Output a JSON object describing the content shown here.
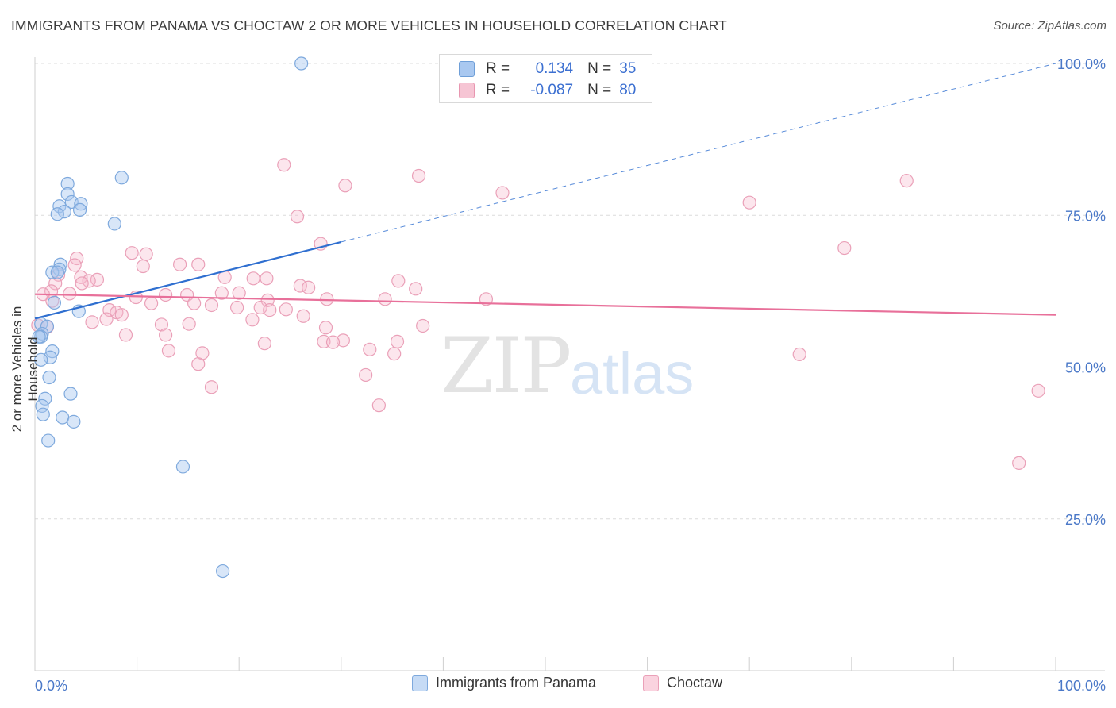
{
  "title": "IMMIGRANTS FROM PANAMA VS CHOCTAW 2 OR MORE VEHICLES IN HOUSEHOLD CORRELATION CHART",
  "source": "Source: ZipAtlas.com",
  "watermark": {
    "zip": "ZIP",
    "atlas": "atlas"
  },
  "stats": {
    "r_label": "R =",
    "n_label": "N =",
    "rows": [
      {
        "r": "0.134",
        "n": "35"
      },
      {
        "r": "-0.087",
        "n": "80"
      }
    ]
  },
  "legend": [
    "Immigrants from Panama",
    "Choctaw"
  ],
  "colors": {
    "blue": "#a9c8f0",
    "blue_line": "#2f6fd0",
    "pink": "#f6b8cb",
    "pink_line": "#e8709a",
    "tick_text": "#4a78c8"
  },
  "chart_data": {
    "type": "scatter",
    "title": "IMMIGRANTS FROM PANAMA VS CHOCTAW 2 OR MORE VEHICLES IN HOUSEHOLD CORRELATION CHART",
    "xlabel": "",
    "ylabel": "2 or more Vehicles in Household",
    "xlim": [
      0,
      100
    ],
    "ylim": [
      0,
      102
    ],
    "x_tick_labels": [
      "0.0%",
      "100.0%"
    ],
    "y_tick_labels": [
      "25.0%",
      "50.0%",
      "75.0%",
      "100.0%"
    ],
    "y_ticks": [
      25,
      50,
      75,
      100
    ],
    "grid": true,
    "legend_position": "bottom",
    "series": [
      {
        "name": "Immigrants from Panama",
        "trend": {
          "x": [
            0,
            30
          ],
          "y": [
            58.0,
            70.6
          ],
          "extended_to": [
            100,
            100.0
          ]
        },
        "points": [
          [
            26.1,
            100.0
          ],
          [
            8.5,
            81.2
          ],
          [
            3.2,
            80.2
          ],
          [
            3.2,
            78.5
          ],
          [
            3.6,
            77.2
          ],
          [
            4.5,
            76.9
          ],
          [
            2.4,
            76.5
          ],
          [
            4.4,
            75.9
          ],
          [
            2.9,
            75.6
          ],
          [
            2.2,
            75.2
          ],
          [
            7.8,
            73.6
          ],
          [
            2.5,
            66.9
          ],
          [
            2.4,
            66.1
          ],
          [
            1.7,
            65.6
          ],
          [
            2.2,
            65.6
          ],
          [
            1.9,
            60.6
          ],
          [
            4.3,
            59.2
          ],
          [
            0.6,
            57.1
          ],
          [
            1.2,
            56.7
          ],
          [
            0.7,
            55.5
          ],
          [
            0.6,
            55.0
          ],
          [
            1.7,
            52.6
          ],
          [
            1.5,
            51.6
          ],
          [
            0.6,
            51.2
          ],
          [
            1.4,
            48.3
          ],
          [
            3.5,
            45.6
          ],
          [
            1.0,
            44.8
          ],
          [
            0.7,
            43.6
          ],
          [
            0.8,
            42.2
          ],
          [
            2.7,
            41.7
          ],
          [
            3.8,
            41.0
          ],
          [
            1.3,
            37.9
          ],
          [
            14.5,
            33.6
          ],
          [
            18.4,
            16.4
          ],
          [
            0.4,
            55.0
          ]
        ]
      },
      {
        "name": "Choctaw",
        "trend": {
          "x": [
            0,
            100
          ],
          "y": [
            62.0,
            58.6
          ]
        },
        "points": [
          [
            24.4,
            83.3
          ],
          [
            37.6,
            81.5
          ],
          [
            30.4,
            79.9
          ],
          [
            45.8,
            78.7
          ],
          [
            85.4,
            80.7
          ],
          [
            70.0,
            77.1
          ],
          [
            25.7,
            74.8
          ],
          [
            28.0,
            70.3
          ],
          [
            79.3,
            69.6
          ],
          [
            9.5,
            68.8
          ],
          [
            10.9,
            68.6
          ],
          [
            4.1,
            67.9
          ],
          [
            3.9,
            66.8
          ],
          [
            10.6,
            66.6
          ],
          [
            14.2,
            66.9
          ],
          [
            16.0,
            66.9
          ],
          [
            2.3,
            65.2
          ],
          [
            4.5,
            64.8
          ],
          [
            18.6,
            64.8
          ],
          [
            21.4,
            64.6
          ],
          [
            22.7,
            64.6
          ],
          [
            6.1,
            64.4
          ],
          [
            2.0,
            63.8
          ],
          [
            5.3,
            64.2
          ],
          [
            4.6,
            63.8
          ],
          [
            35.6,
            64.2
          ],
          [
            26.0,
            63.4
          ],
          [
            26.8,
            63.1
          ],
          [
            37.3,
            62.9
          ],
          [
            1.6,
            62.5
          ],
          [
            3.4,
            62.1
          ],
          [
            0.8,
            62.0
          ],
          [
            18.3,
            62.2
          ],
          [
            20.0,
            62.2
          ],
          [
            12.8,
            61.9
          ],
          [
            14.9,
            61.9
          ],
          [
            9.9,
            61.5
          ],
          [
            28.6,
            61.2
          ],
          [
            44.2,
            61.2
          ],
          [
            34.3,
            61.2
          ],
          [
            22.8,
            61.0
          ],
          [
            1.7,
            60.9
          ],
          [
            11.4,
            60.5
          ],
          [
            15.6,
            60.5
          ],
          [
            17.3,
            60.2
          ],
          [
            19.8,
            59.8
          ],
          [
            22.1,
            59.8
          ],
          [
            24.6,
            59.5
          ],
          [
            23.0,
            59.4
          ],
          [
            7.3,
            59.4
          ],
          [
            8.0,
            59.0
          ],
          [
            8.5,
            58.6
          ],
          [
            26.3,
            58.4
          ],
          [
            7.0,
            57.9
          ],
          [
            21.3,
            57.8
          ],
          [
            5.6,
            57.4
          ],
          [
            12.4,
            57.0
          ],
          [
            15.1,
            57.1
          ],
          [
            28.5,
            56.5
          ],
          [
            38.0,
            56.8
          ],
          [
            1.2,
            56.6
          ],
          [
            8.9,
            55.3
          ],
          [
            12.8,
            55.3
          ],
          [
            30.2,
            54.4
          ],
          [
            28.3,
            54.2
          ],
          [
            35.5,
            54.2
          ],
          [
            29.2,
            54.1
          ],
          [
            22.5,
            53.9
          ],
          [
            32.8,
            52.9
          ],
          [
            13.1,
            52.7
          ],
          [
            16.4,
            52.3
          ],
          [
            35.2,
            52.2
          ],
          [
            74.9,
            52.1
          ],
          [
            16.0,
            50.5
          ],
          [
            32.4,
            48.7
          ],
          [
            17.3,
            46.7
          ],
          [
            33.7,
            43.7
          ],
          [
            98.3,
            46.1
          ],
          [
            96.4,
            34.2
          ],
          [
            0.3,
            56.9
          ]
        ]
      }
    ]
  }
}
